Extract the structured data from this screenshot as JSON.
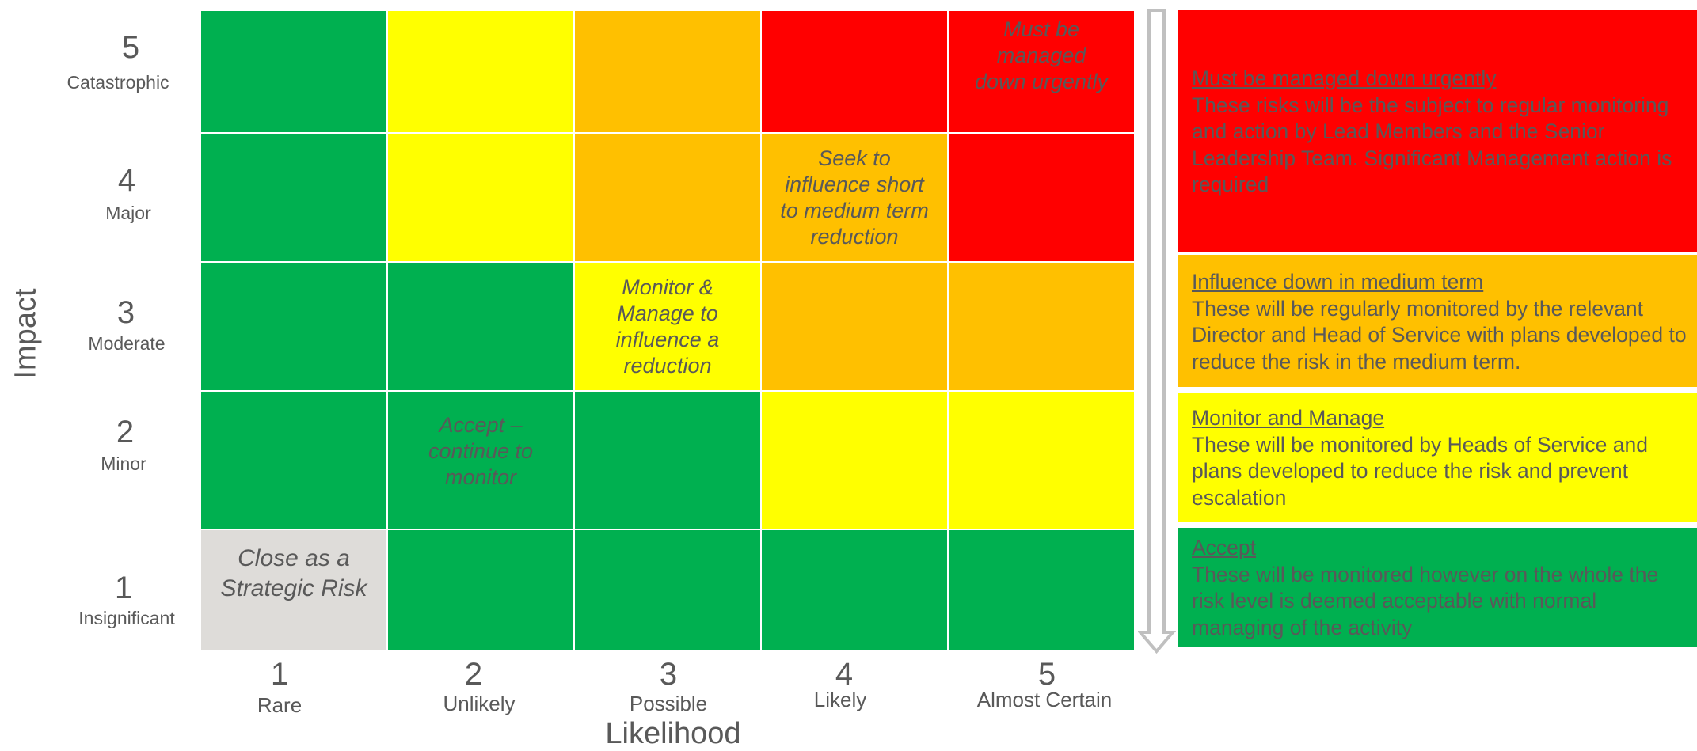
{
  "colors": {
    "green": "#00b050",
    "yellow": "#ffff00",
    "orange": "#ffc000",
    "red": "#ff0000",
    "grey": "#dedcd9",
    "text": "#595959",
    "arrow": "#c0c0c0"
  },
  "y_axis": {
    "title": "Impact",
    "levels": [
      {
        "num": "5",
        "label": "Catastrophic"
      },
      {
        "num": "4",
        "label": "Major"
      },
      {
        "num": "3",
        "label": "Moderate"
      },
      {
        "num": "2",
        "label": "Minor"
      },
      {
        "num": "1",
        "label": "Insignificant"
      }
    ]
  },
  "x_axis": {
    "title": "Likelihood",
    "levels": [
      {
        "num": "1",
        "label": "Rare"
      },
      {
        "num": "2",
        "label": "Unlikely"
      },
      {
        "num": "3",
        "label": "Possible"
      },
      {
        "num": "4",
        "label": "Likely"
      },
      {
        "num": "5",
        "label": "Almost Certain"
      }
    ]
  },
  "matrix": {
    "rows": [
      {
        "impact": "5",
        "cells": [
          "green",
          "yellow",
          "orange",
          "red",
          "red"
        ]
      },
      {
        "impact": "4",
        "cells": [
          "green",
          "yellow",
          "orange",
          "orange",
          "red"
        ]
      },
      {
        "impact": "3",
        "cells": [
          "green",
          "green",
          "yellow",
          "orange",
          "orange"
        ]
      },
      {
        "impact": "2",
        "cells": [
          "green",
          "green",
          "green",
          "yellow",
          "yellow"
        ]
      },
      {
        "impact": "1",
        "cells": [
          "grey",
          "green",
          "green",
          "green",
          "green"
        ]
      }
    ],
    "annotations": {
      "must_be_managed": "Must be managed down urgently",
      "seek_to_influence": "Seek to influence short to medium term reduction",
      "monitor_manage": "Monitor & Manage to influence a reduction",
      "accept": "Accept – continue to monitor",
      "close": "Close as a Strategic Risk"
    }
  },
  "legend": [
    {
      "color": "red",
      "title": "Must be managed down urgently",
      "text": "These risks will be the subject to regular monitoring and action by Lead Members and the Senior Leadership Team. Significant Management action is required"
    },
    {
      "color": "orange",
      "title": "Influence down in medium term",
      "text": "These will be regularly monitored by the relevant Director and Head of Service with plans developed to reduce the risk in the medium term."
    },
    {
      "color": "yellow",
      "title": "Monitor and Manage",
      "text": "These will be monitored by Heads of Service and plans developed to reduce the risk and prevent escalation"
    },
    {
      "color": "green",
      "title": "Accept",
      "text": "These will be monitored however on the whole the risk level is deemed acceptable with normal managing of the activity"
    }
  ]
}
